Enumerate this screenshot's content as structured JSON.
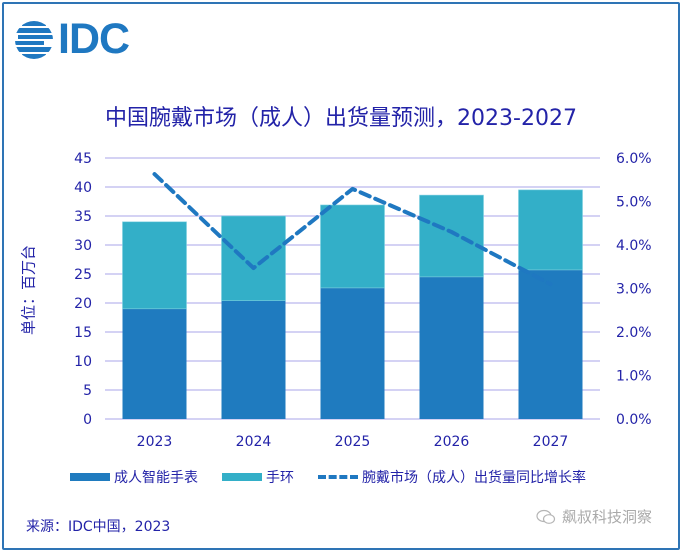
{
  "logo": {
    "text": "IDC",
    "icon": "idc-globe-icon"
  },
  "footer": {
    "source": "来源：IDC中国，2023",
    "watermark": "飙叔科技洞察",
    "watermark_icon": "wechat-icon"
  },
  "colors": {
    "smartwatch": "#1f7bbf",
    "band": "#33afc8",
    "growth_line": "#1f78c1",
    "text": "#2323a8",
    "grid": "#c6c3f0",
    "frame": "#2e74b5"
  },
  "chart_data": {
    "type": "bar",
    "stacked": true,
    "title": "中国腕戴市场（成人）出货量预测，2023-2027",
    "xlabel": "",
    "ylabel": "单位：百万台",
    "y2label": "",
    "categories": [
      "2023",
      "2024",
      "2025",
      "2026",
      "2027"
    ],
    "ylim": [
      0,
      45
    ],
    "yticks": [
      0,
      5,
      10,
      15,
      20,
      25,
      30,
      35,
      40,
      45
    ],
    "y2lim": [
      0,
      6
    ],
    "y2ticks": [
      "0.0%",
      "1.0%",
      "2.0%",
      "3.0%",
      "4.0%",
      "5.0%",
      "6.0%"
    ],
    "grid": true,
    "legend_position": "bottom",
    "series": [
      {
        "name": "成人智能手表",
        "type": "bar",
        "axis": "left",
        "values": [
          19.0,
          20.4,
          22.6,
          24.5,
          25.7
        ]
      },
      {
        "name": "手环",
        "type": "bar",
        "axis": "left",
        "values": [
          15.0,
          14.6,
          14.3,
          14.1,
          13.8
        ]
      },
      {
        "name": "腕戴市场（成人）出货量同比增长率",
        "type": "line",
        "style": "dashed",
        "axis": "right",
        "unit": "%",
        "values": [
          5.63,
          3.47,
          5.29,
          4.3,
          3.1
        ]
      }
    ]
  }
}
